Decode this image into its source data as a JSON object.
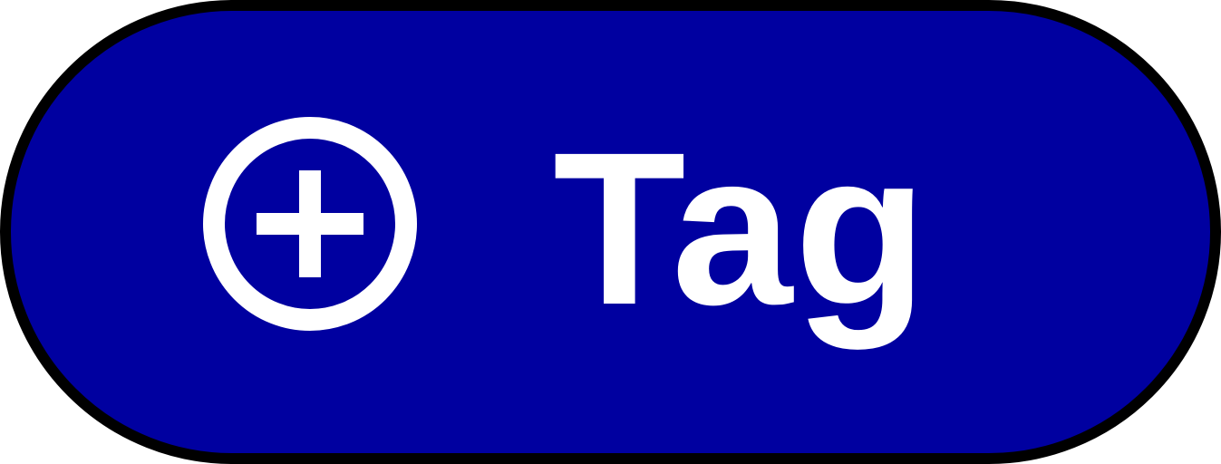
{
  "tag_button": {
    "label": "Tag",
    "icon": "add-circle-icon",
    "colors": {
      "background": "#0000A0",
      "border": "#000000",
      "foreground": "#FFFFFF"
    }
  }
}
